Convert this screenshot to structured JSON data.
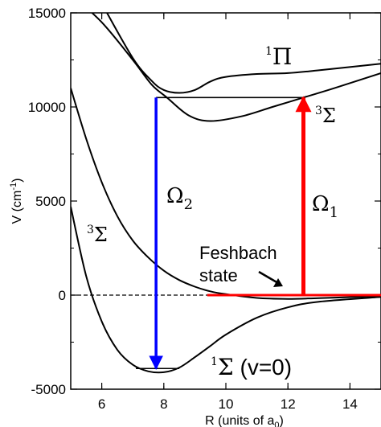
{
  "chart_data": {
    "type": "line",
    "xlabel": "R (units of a",
    "xlabel_sub": "0",
    "xlabel_end": ")",
    "ylabel": "V (cm",
    "ylabel_sup": "-1",
    "ylabel_end": ")",
    "xlim": [
      5,
      15
    ],
    "ylim": [
      -5000,
      15000
    ],
    "x_ticks": [
      6,
      8,
      10,
      12,
      14
    ],
    "y_ticks": [
      -5000,
      0,
      5000,
      10000,
      15000
    ],
    "zero_line": true,
    "series": [
      {
        "points": [
          [
            5,
            16000
          ],
          [
            6,
            14500
          ],
          [
            7,
            12500
          ],
          [
            7.6,
            11200
          ],
          [
            8.1,
            10500
          ],
          [
            8.8,
            9550
          ],
          [
            9.5,
            9250
          ],
          [
            10.5,
            9500
          ],
          [
            11.5,
            10000
          ],
          [
            12.5,
            10500
          ],
          [
            13.5,
            11000
          ],
          [
            15,
            11800
          ]
        ],
        "color": "#000000"
      },
      {
        "points": [
          [
            6,
            15500
          ],
          [
            7,
            12600
          ],
          [
            7.6,
            11400
          ],
          [
            8,
            10900
          ],
          [
            8.5,
            10750
          ],
          [
            9,
            10900
          ],
          [
            9.5,
            11350
          ],
          [
            10,
            11600
          ],
          [
            11,
            11750
          ],
          [
            12,
            11800
          ],
          [
            13,
            11950
          ],
          [
            15,
            12300
          ]
        ],
        "color": "#000000"
      },
      {
        "points": [
          [
            5,
            11000
          ],
          [
            5.5,
            8300
          ],
          [
            6,
            6000
          ],
          [
            6.5,
            4200
          ],
          [
            7,
            2900
          ],
          [
            7.5,
            2000
          ],
          [
            8,
            1300
          ],
          [
            8.5,
            800
          ],
          [
            9,
            450
          ],
          [
            9.5,
            200
          ],
          [
            10,
            50
          ],
          [
            11,
            -150
          ],
          [
            12,
            -200
          ],
          [
            13,
            -160
          ],
          [
            15,
            -50
          ]
        ],
        "color": "#000000"
      },
      {
        "points": [
          [
            5,
            4700
          ],
          [
            5.5,
            1000
          ],
          [
            6,
            -1400
          ],
          [
            6.5,
            -2900
          ],
          [
            7,
            -3700
          ],
          [
            7.5,
            -4050
          ],
          [
            8,
            -4100
          ],
          [
            8.5,
            -3850
          ],
          [
            9,
            -3300
          ],
          [
            9.5,
            -2700
          ],
          [
            10,
            -2100
          ],
          [
            11,
            -1200
          ],
          [
            12,
            -650
          ],
          [
            13,
            -350
          ],
          [
            15,
            -100
          ]
        ],
        "color": "#000000"
      }
    ],
    "levels": [
      {
        "x": [
          7.75,
          12.5
        ],
        "y": 10500,
        "color": "#000000"
      },
      {
        "x": [
          7.1,
          8.5
        ],
        "y": -3900,
        "color": "#000000"
      },
      {
        "x": [
          9.4,
          15
        ],
        "y": 0,
        "color": "#ff0000"
      }
    ],
    "arrows": [
      {
        "label": "Ω₂",
        "x": 7.75,
        "from": 10500,
        "to": -3900,
        "color": "#0000ff"
      },
      {
        "label": "Ω₁",
        "x": 12.5,
        "from": 0,
        "to": 10500,
        "color": "#ff0000"
      }
    ],
    "annotations": {
      "pi_main": "Π",
      "pi_sup": "1",
      "sigma3_upper_main": "Σ",
      "sigma3_upper_sup": "3",
      "sigma3_lower_main": "Σ",
      "sigma3_lower_sup": "3",
      "omega2_main": "Ω",
      "omega2_sub": "2",
      "omega1_main": "Ω",
      "omega1_sub": "1",
      "feshbach_line1": "Feshbach",
      "feshbach_line2": "state",
      "ground_sup": "1",
      "ground_main": "Σ",
      "ground_rest": " (v=0)"
    }
  }
}
